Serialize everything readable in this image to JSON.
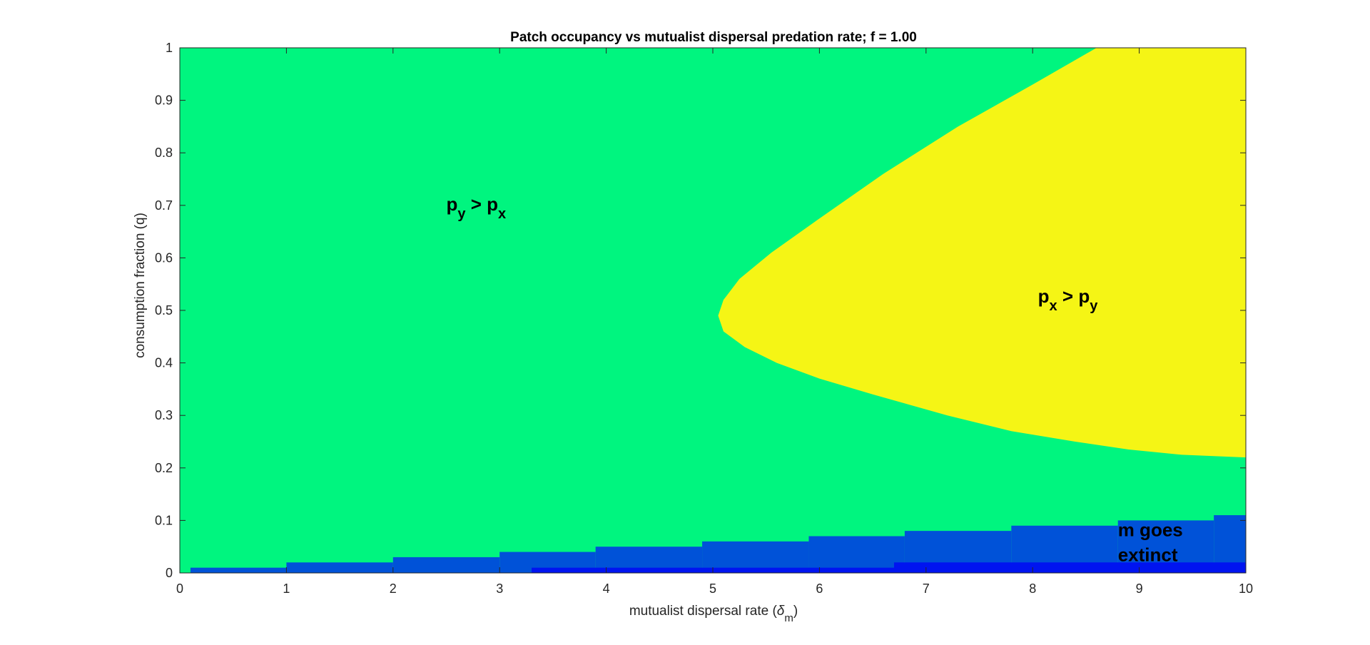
{
  "chart_data": {
    "type": "heatmap",
    "title": "Patch occupancy vs mutualist dispersal predation rate; f = 1.00",
    "xlabel": {
      "main": "mutualist dispersal rate (",
      "symbol": "δ",
      "sub": "m",
      "close": ")"
    },
    "ylabel": "consumption fraction (q)",
    "xlim": [
      0,
      10
    ],
    "ylim": [
      0,
      1
    ],
    "x_ticks": [
      0,
      1,
      2,
      3,
      4,
      5,
      6,
      7,
      8,
      9,
      10
    ],
    "y_ticks": [
      0,
      0.1,
      0.2,
      0.3,
      0.4,
      0.5,
      0.6,
      0.7,
      0.8,
      0.9,
      1
    ],
    "y_tick_labels": [
      "0",
      "0.1",
      "0.2",
      "0.3",
      "0.4",
      "0.5",
      "0.6",
      "0.7",
      "0.8",
      "0.9",
      "1"
    ],
    "grid": false,
    "colors": {
      "py_gt_px": "#00f57f",
      "px_gt_py": "#f5f515",
      "m_extinct": "#0052d8",
      "m_extinct_deep": "#0014f0"
    },
    "regions": [
      {
        "name": "py-gt-px-region",
        "color_key": "py_gt_px",
        "description_label": "p_y > p_x",
        "fill": "background"
      },
      {
        "name": "px-gt-py-region",
        "color_key": "px_gt_py",
        "boundary": [
          [
            8.6,
            1.0
          ],
          [
            8.0,
            0.93
          ],
          [
            7.3,
            0.85
          ],
          [
            6.6,
            0.76
          ],
          [
            6.0,
            0.675
          ],
          [
            5.55,
            0.61
          ],
          [
            5.25,
            0.56
          ],
          [
            5.1,
            0.52
          ],
          [
            5.05,
            0.49
          ],
          [
            5.1,
            0.46
          ],
          [
            5.3,
            0.43
          ],
          [
            5.6,
            0.4
          ],
          [
            6.0,
            0.37
          ],
          [
            6.5,
            0.34
          ],
          [
            7.2,
            0.3
          ],
          [
            7.8,
            0.27
          ],
          [
            8.4,
            0.25
          ],
          [
            8.9,
            0.235
          ],
          [
            9.4,
            0.225
          ],
          [
            10.0,
            0.22
          ],
          [
            10.0,
            1.0
          ]
        ]
      }
    ],
    "extinct_steps": [
      {
        "x0": 0.1,
        "x1": 1.0,
        "q": 0.01
      },
      {
        "x0": 1.0,
        "x1": 2.0,
        "q": 0.02
      },
      {
        "x0": 2.0,
        "x1": 3.0,
        "q": 0.03
      },
      {
        "x0": 3.0,
        "x1": 3.9,
        "q": 0.04
      },
      {
        "x0": 3.9,
        "x1": 4.9,
        "q": 0.05
      },
      {
        "x0": 4.9,
        "x1": 5.9,
        "q": 0.06
      },
      {
        "x0": 5.9,
        "x1": 6.8,
        "q": 0.07
      },
      {
        "x0": 6.8,
        "x1": 7.8,
        "q": 0.08
      },
      {
        "x0": 7.8,
        "x1": 8.8,
        "q": 0.09
      },
      {
        "x0": 8.8,
        "x1": 9.7,
        "q": 0.1
      },
      {
        "x0": 9.7,
        "x1": 10.0,
        "q": 0.11
      }
    ],
    "extinct_deep_steps": [
      {
        "x0": 3.3,
        "x1": 6.7,
        "q": 0.01
      },
      {
        "x0": 6.7,
        "x1": 10.0,
        "q": 0.02
      }
    ],
    "annotations": {
      "py_gt_px": {
        "p1": "p",
        "s1": "y",
        "op": " > ",
        "p2": "p",
        "s2": "x",
        "x": 2.5,
        "q": 0.69
      },
      "px_gt_py": {
        "p1": "p",
        "s1": "x",
        "op": " > ",
        "p2": "p",
        "s2": "y",
        "x": 8.05,
        "q": 0.515
      },
      "m_extinct": {
        "line1": "m goes",
        "line2": "extinct",
        "x": 8.8,
        "q": 0.07
      }
    }
  }
}
